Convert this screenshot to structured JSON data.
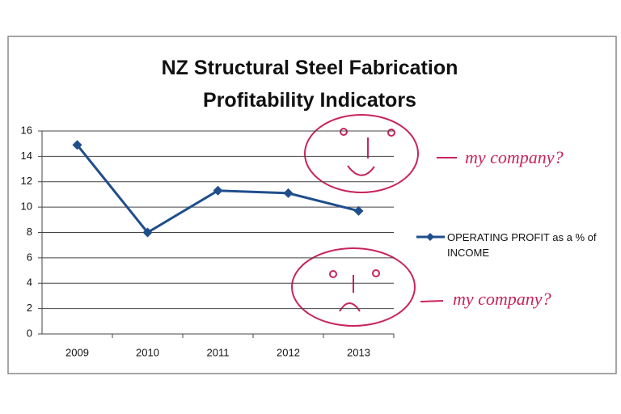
{
  "chart_data": {
    "type": "line",
    "title": "NZ Structural Steel Fabrication Profitability Indicators",
    "categories": [
      "2009",
      "2010",
      "2011",
      "2012",
      "2013"
    ],
    "series": [
      {
        "name": "OPERATING PROFIT as a % of INCOME",
        "color": "#1f4e8c",
        "values": [
          14.9,
          8.0,
          11.3,
          11.1,
          9.7
        ]
      }
    ],
    "ylim": [
      0,
      16
    ],
    "yticks": [
      0,
      2,
      4,
      6,
      8,
      10,
      12,
      14,
      16
    ],
    "grid": true,
    "legend": "right",
    "annotations": [
      "my company?",
      "my company?"
    ]
  }
}
